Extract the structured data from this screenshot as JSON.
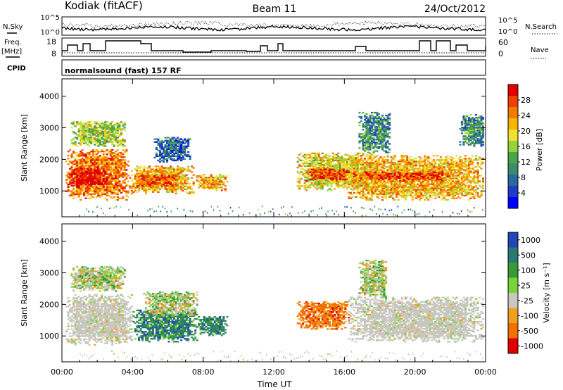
{
  "header": {
    "radar": "Kodiak (fitACF)",
    "beam": "Beam 11",
    "date": "24/Oct/2012"
  },
  "params": {
    "left_top_label": "N.Sky",
    "left_freq_label_1": "Freq.",
    "left_freq_label_2": "[MHz]",
    "left_cpid_label": "CPID",
    "right_top_label": "N.Search",
    "right_nave_label": "Nave",
    "nsky_ticks": [
      "10^5",
      "10^0"
    ],
    "nsearch_ticks": [
      "10^5",
      "10^0"
    ],
    "freq_ticks": [
      "18",
      "8"
    ],
    "nave_ticks": [
      "60",
      "0"
    ],
    "cpid_text": "normalsound (fast) 157 RF"
  },
  "chart_data": [
    {
      "type": "heatmap",
      "title": "",
      "panel": "power",
      "xlabel": "",
      "ylabel": "Slant Range [km]",
      "x_ticks": [
        "00:00",
        "04:00",
        "08:00",
        "12:00",
        "16:00",
        "20:00",
        "00:00"
      ],
      "x_hours": [
        0,
        4,
        8,
        12,
        16,
        20,
        24
      ],
      "xlim": [
        0,
        24
      ],
      "y_ticks": [
        1000,
        2000,
        3000,
        4000
      ],
      "ylim": [
        180,
        4550
      ],
      "colorbar": {
        "label": "Power [dB]",
        "ticks": [
          "4",
          "8",
          "12",
          "16",
          "20",
          "24",
          "28"
        ],
        "colors": [
          "#0000ff",
          "#1e3cc8",
          "#2a6a9a",
          "#3c8c6c",
          "#4aa54a",
          "#9ad23a",
          "#f0e030",
          "#f5b400",
          "#f57a00",
          "#f04000",
          "#e00000"
        ]
      },
      "echo_regions": [
        {
          "t0": 0.2,
          "t1": 3.8,
          "r0": 700,
          "r1": 2300,
          "level": 8
        },
        {
          "t0": 0.3,
          "t1": 2.6,
          "r0": 1100,
          "r1": 1700,
          "level": 10
        },
        {
          "t0": 0.5,
          "t1": 3.6,
          "r0": 2400,
          "r1": 3200,
          "level": 5
        },
        {
          "t0": 3.8,
          "t1": 7.4,
          "r0": 900,
          "r1": 1800,
          "level": 7
        },
        {
          "t0": 4.2,
          "t1": 6.4,
          "r0": 1100,
          "r1": 1500,
          "level": 9
        },
        {
          "t0": 5.2,
          "t1": 7.2,
          "r0": 1900,
          "r1": 2700,
          "level": 2
        },
        {
          "t0": 7.6,
          "t1": 9.3,
          "r0": 1000,
          "r1": 1500,
          "level": 7
        },
        {
          "t0": 13.3,
          "t1": 17.6,
          "r0": 1000,
          "r1": 2200,
          "level": 6
        },
        {
          "t0": 13.8,
          "t1": 16.2,
          "r0": 1300,
          "r1": 1700,
          "level": 9
        },
        {
          "t0": 16.2,
          "t1": 23.9,
          "r0": 700,
          "r1": 2100,
          "level": 7
        },
        {
          "t0": 16.5,
          "t1": 22.0,
          "r0": 1300,
          "r1": 1600,
          "level": 9
        },
        {
          "t0": 16.8,
          "t1": 18.6,
          "r0": 2200,
          "r1": 3500,
          "level": 3
        },
        {
          "t0": 22.5,
          "t1": 23.9,
          "r0": 2400,
          "r1": 3400,
          "level": 3
        }
      ],
      "ground_scatter_band": [
        200,
        500
      ]
    },
    {
      "type": "heatmap",
      "title": "",
      "panel": "velocity",
      "xlabel": "Time UT",
      "ylabel": "Slant Range [km]",
      "x_ticks": [
        "00:00",
        "04:00",
        "08:00",
        "12:00",
        "16:00",
        "20:00",
        "00:00"
      ],
      "x_hours": [
        0,
        4,
        8,
        12,
        16,
        20,
        24
      ],
      "xlim": [
        0,
        24
      ],
      "y_ticks": [
        1000,
        2000,
        3000,
        4000
      ],
      "ylim": [
        180,
        4550
      ],
      "colorbar": {
        "label": "Velocity [m s⁻¹]",
        "ticks": [
          "1000",
          "500",
          "100",
          "25",
          "-25",
          "-100",
          "-500",
          "-1000"
        ],
        "colors": [
          "#2046b8",
          "#2a7a72",
          "#3a9a3a",
          "#7ad23a",
          "#c8c8c0",
          "#f0a020",
          "#f07000",
          "#e00000"
        ]
      },
      "echo_regions": [
        {
          "t0": 0.2,
          "t1": 4.0,
          "r0": 700,
          "r1": 2300,
          "class": "ground"
        },
        {
          "t0": 0.5,
          "t1": 3.6,
          "r0": 2400,
          "r1": 3200,
          "class": "mixed_low"
        },
        {
          "t0": 4.0,
          "t1": 7.6,
          "r0": 800,
          "r1": 1800,
          "class": "positive"
        },
        {
          "t0": 4.6,
          "t1": 7.6,
          "r0": 1600,
          "r1": 2400,
          "class": "mixed_low"
        },
        {
          "t0": 7.6,
          "t1": 9.3,
          "r0": 1000,
          "r1": 1600,
          "class": "positive"
        },
        {
          "t0": 13.3,
          "t1": 16.2,
          "r0": 1200,
          "r1": 2100,
          "class": "negative"
        },
        {
          "t0": 16.2,
          "t1": 23.9,
          "r0": 800,
          "r1": 2200,
          "class": "ground"
        },
        {
          "t0": 16.8,
          "t1": 18.4,
          "r0": 2200,
          "r1": 3400,
          "class": "mixed_low"
        }
      ],
      "ground_scatter_band": [
        200,
        500
      ]
    }
  ]
}
